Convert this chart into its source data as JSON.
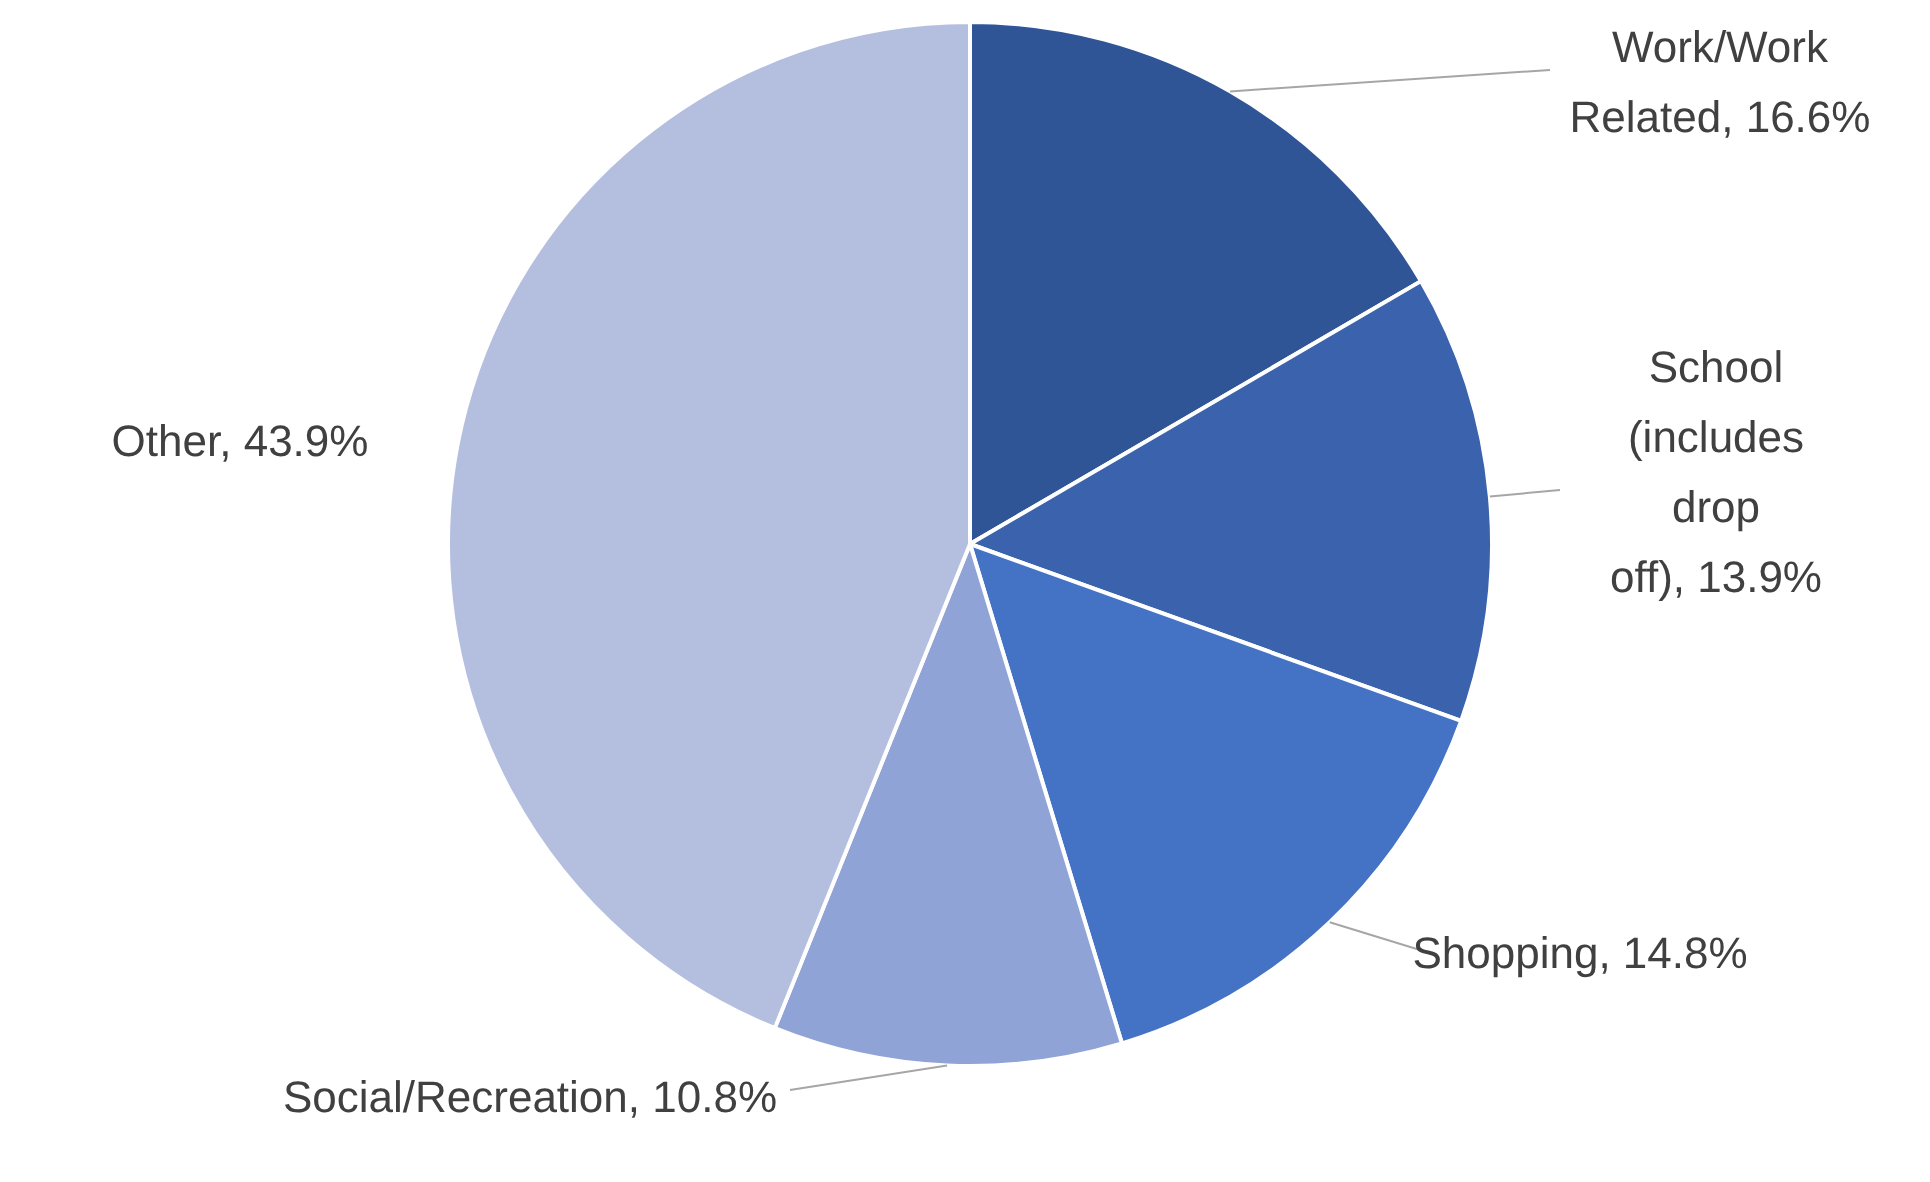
{
  "chart_data": {
    "type": "pie",
    "categories": [
      "Work/Work Related",
      "School (includes drop off)",
      "Shopping",
      "Social/Recreation",
      "Other"
    ],
    "values": [
      16.6,
      13.9,
      14.8,
      10.8,
      43.9
    ],
    "value_labels": [
      "16.6%",
      "13.9%",
      "14.8%",
      "10.8%",
      "43.9%"
    ],
    "colors": [
      "#2f5597",
      "#3a62ad",
      "#4472c4",
      "#8fa3d6",
      "#b4bfe0"
    ]
  }
}
